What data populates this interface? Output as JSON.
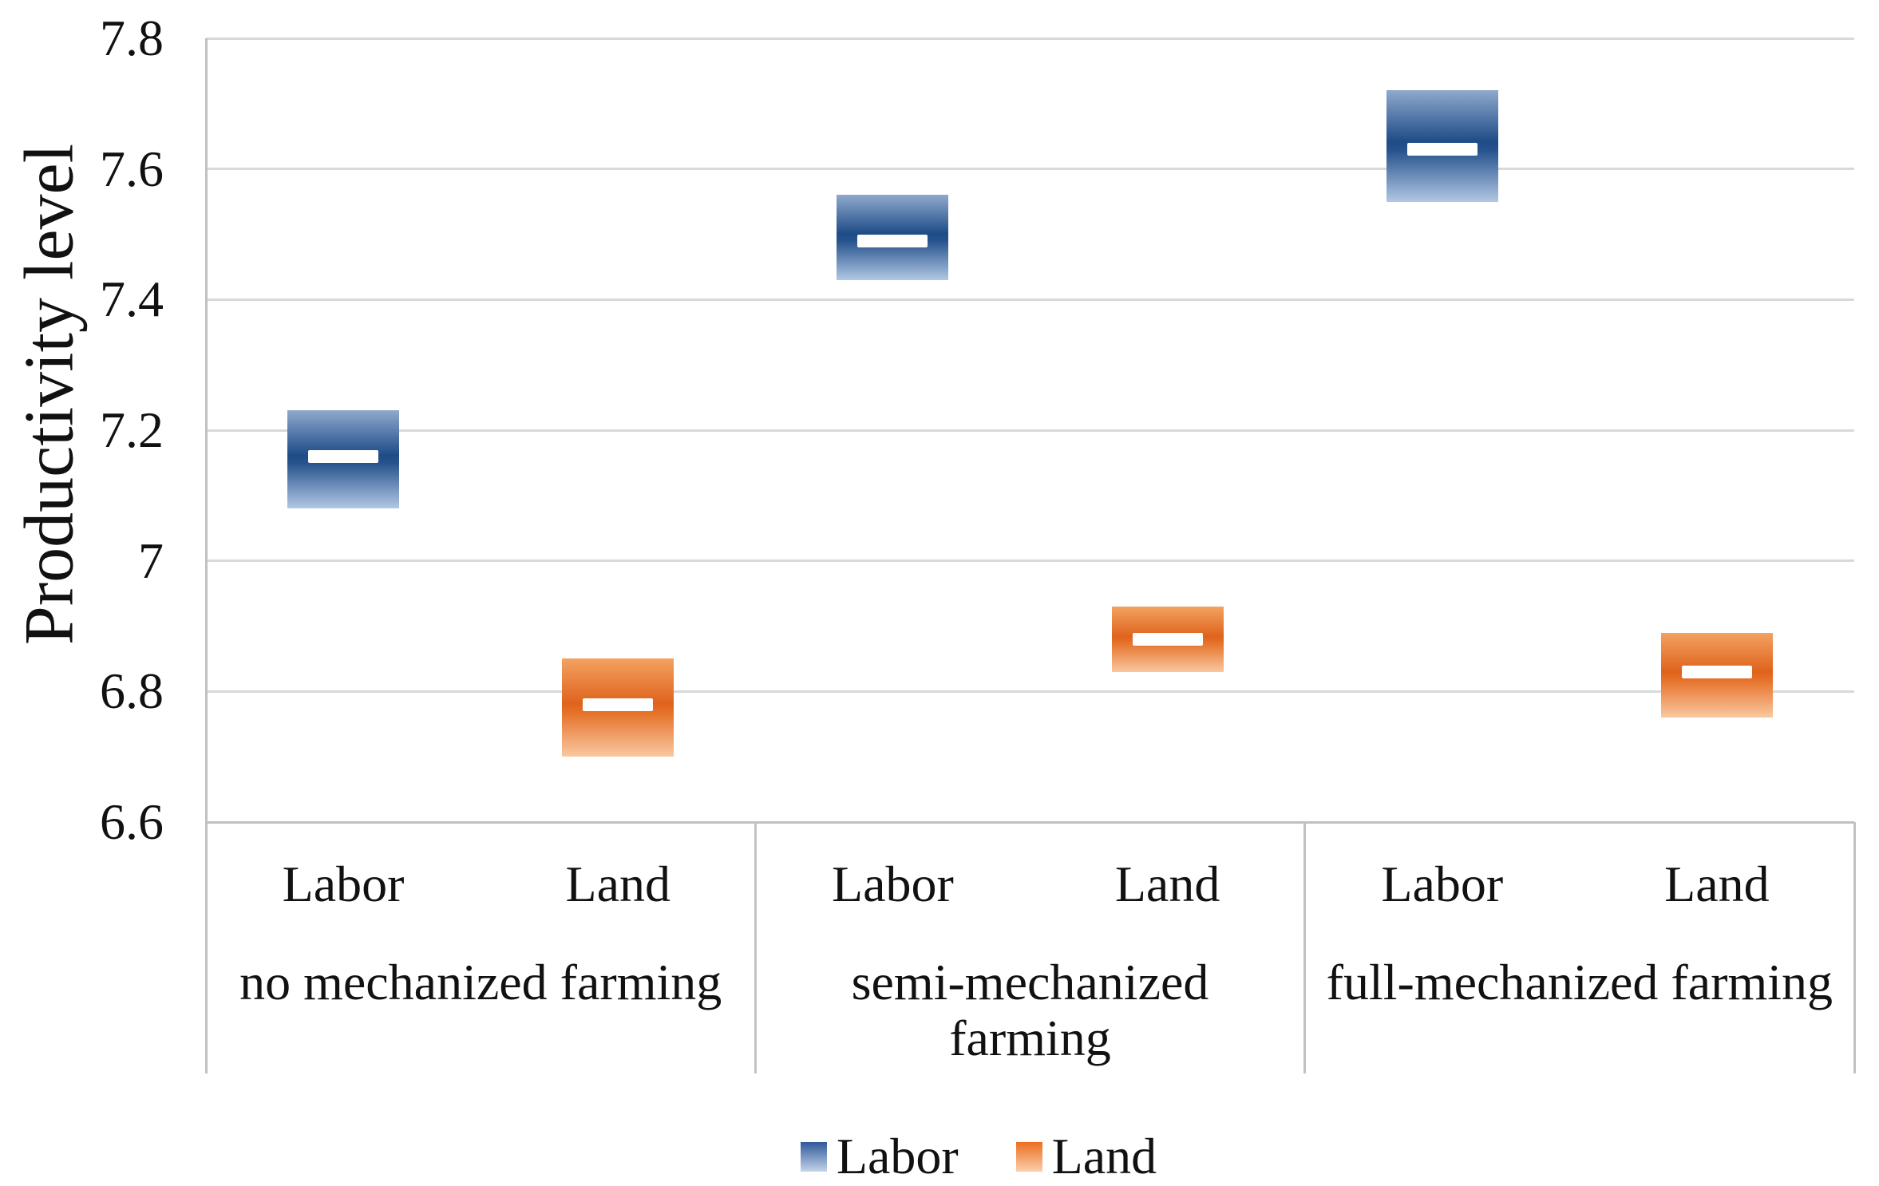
{
  "chart_data": {
    "type": "box",
    "title": "",
    "ylabel": "Productivity level",
    "xlabel": "",
    "ylim": [
      6.6,
      7.8
    ],
    "ytick_labels": [
      "6.6",
      "6.8",
      "7",
      "7.2",
      "7.4",
      "7.6",
      "7.8"
    ],
    "grid": true,
    "legend_position": "bottom",
    "grid_color": "#d9d9d9",
    "axis_color": "#c1c1c1",
    "text_color": "#111111",
    "groups": [
      {
        "label_lines": [
          "no mechanized farming"
        ],
        "categories": [
          "Labor",
          "Land"
        ]
      },
      {
        "label_lines": [
          "semi-mechanized",
          "farming"
        ],
        "categories": [
          "Labor",
          "Land"
        ]
      },
      {
        "label_lines": [
          "full-mechanized farming"
        ],
        "categories": [
          "Labor",
          "Land"
        ]
      }
    ],
    "series": [
      {
        "name": "Labor",
        "colors": {
          "gradient_top": "#8fa9cd",
          "gradient_dark": "#1e4c87",
          "gradient_dark2": "#27538d",
          "gradient_bottom": "#b2c8e4",
          "legend_top": "#30599a",
          "legend_bottom": "#c4d4eb"
        },
        "boxes": [
          {
            "group": "no mechanized farming",
            "low": 7.08,
            "high": 7.23,
            "median": 7.16
          },
          {
            "group": "semi-mechanized farming",
            "low": 7.43,
            "high": 7.56,
            "median": 7.49
          },
          {
            "group": "full-mechanized farming",
            "low": 7.55,
            "high": 7.72,
            "median": 7.63
          }
        ]
      },
      {
        "name": "Land",
        "colors": {
          "gradient_top": "#f3a262",
          "gradient_dark": "#df631c",
          "gradient_dark2": "#e56f26",
          "gradient_bottom": "#f9c8a0",
          "legend_top": "#ec6e1f",
          "legend_bottom": "#fbcfad"
        },
        "boxes": [
          {
            "group": "no mechanized farming",
            "low": 6.7,
            "high": 6.85,
            "median": 6.78
          },
          {
            "group": "semi-mechanized farming",
            "low": 6.83,
            "high": 6.93,
            "median": 6.88
          },
          {
            "group": "full-mechanized farming",
            "low": 6.76,
            "high": 6.89,
            "median": 6.83
          }
        ]
      }
    ],
    "legend": [
      "Labor",
      "Land"
    ],
    "median_marker_color": "#ffffff"
  }
}
